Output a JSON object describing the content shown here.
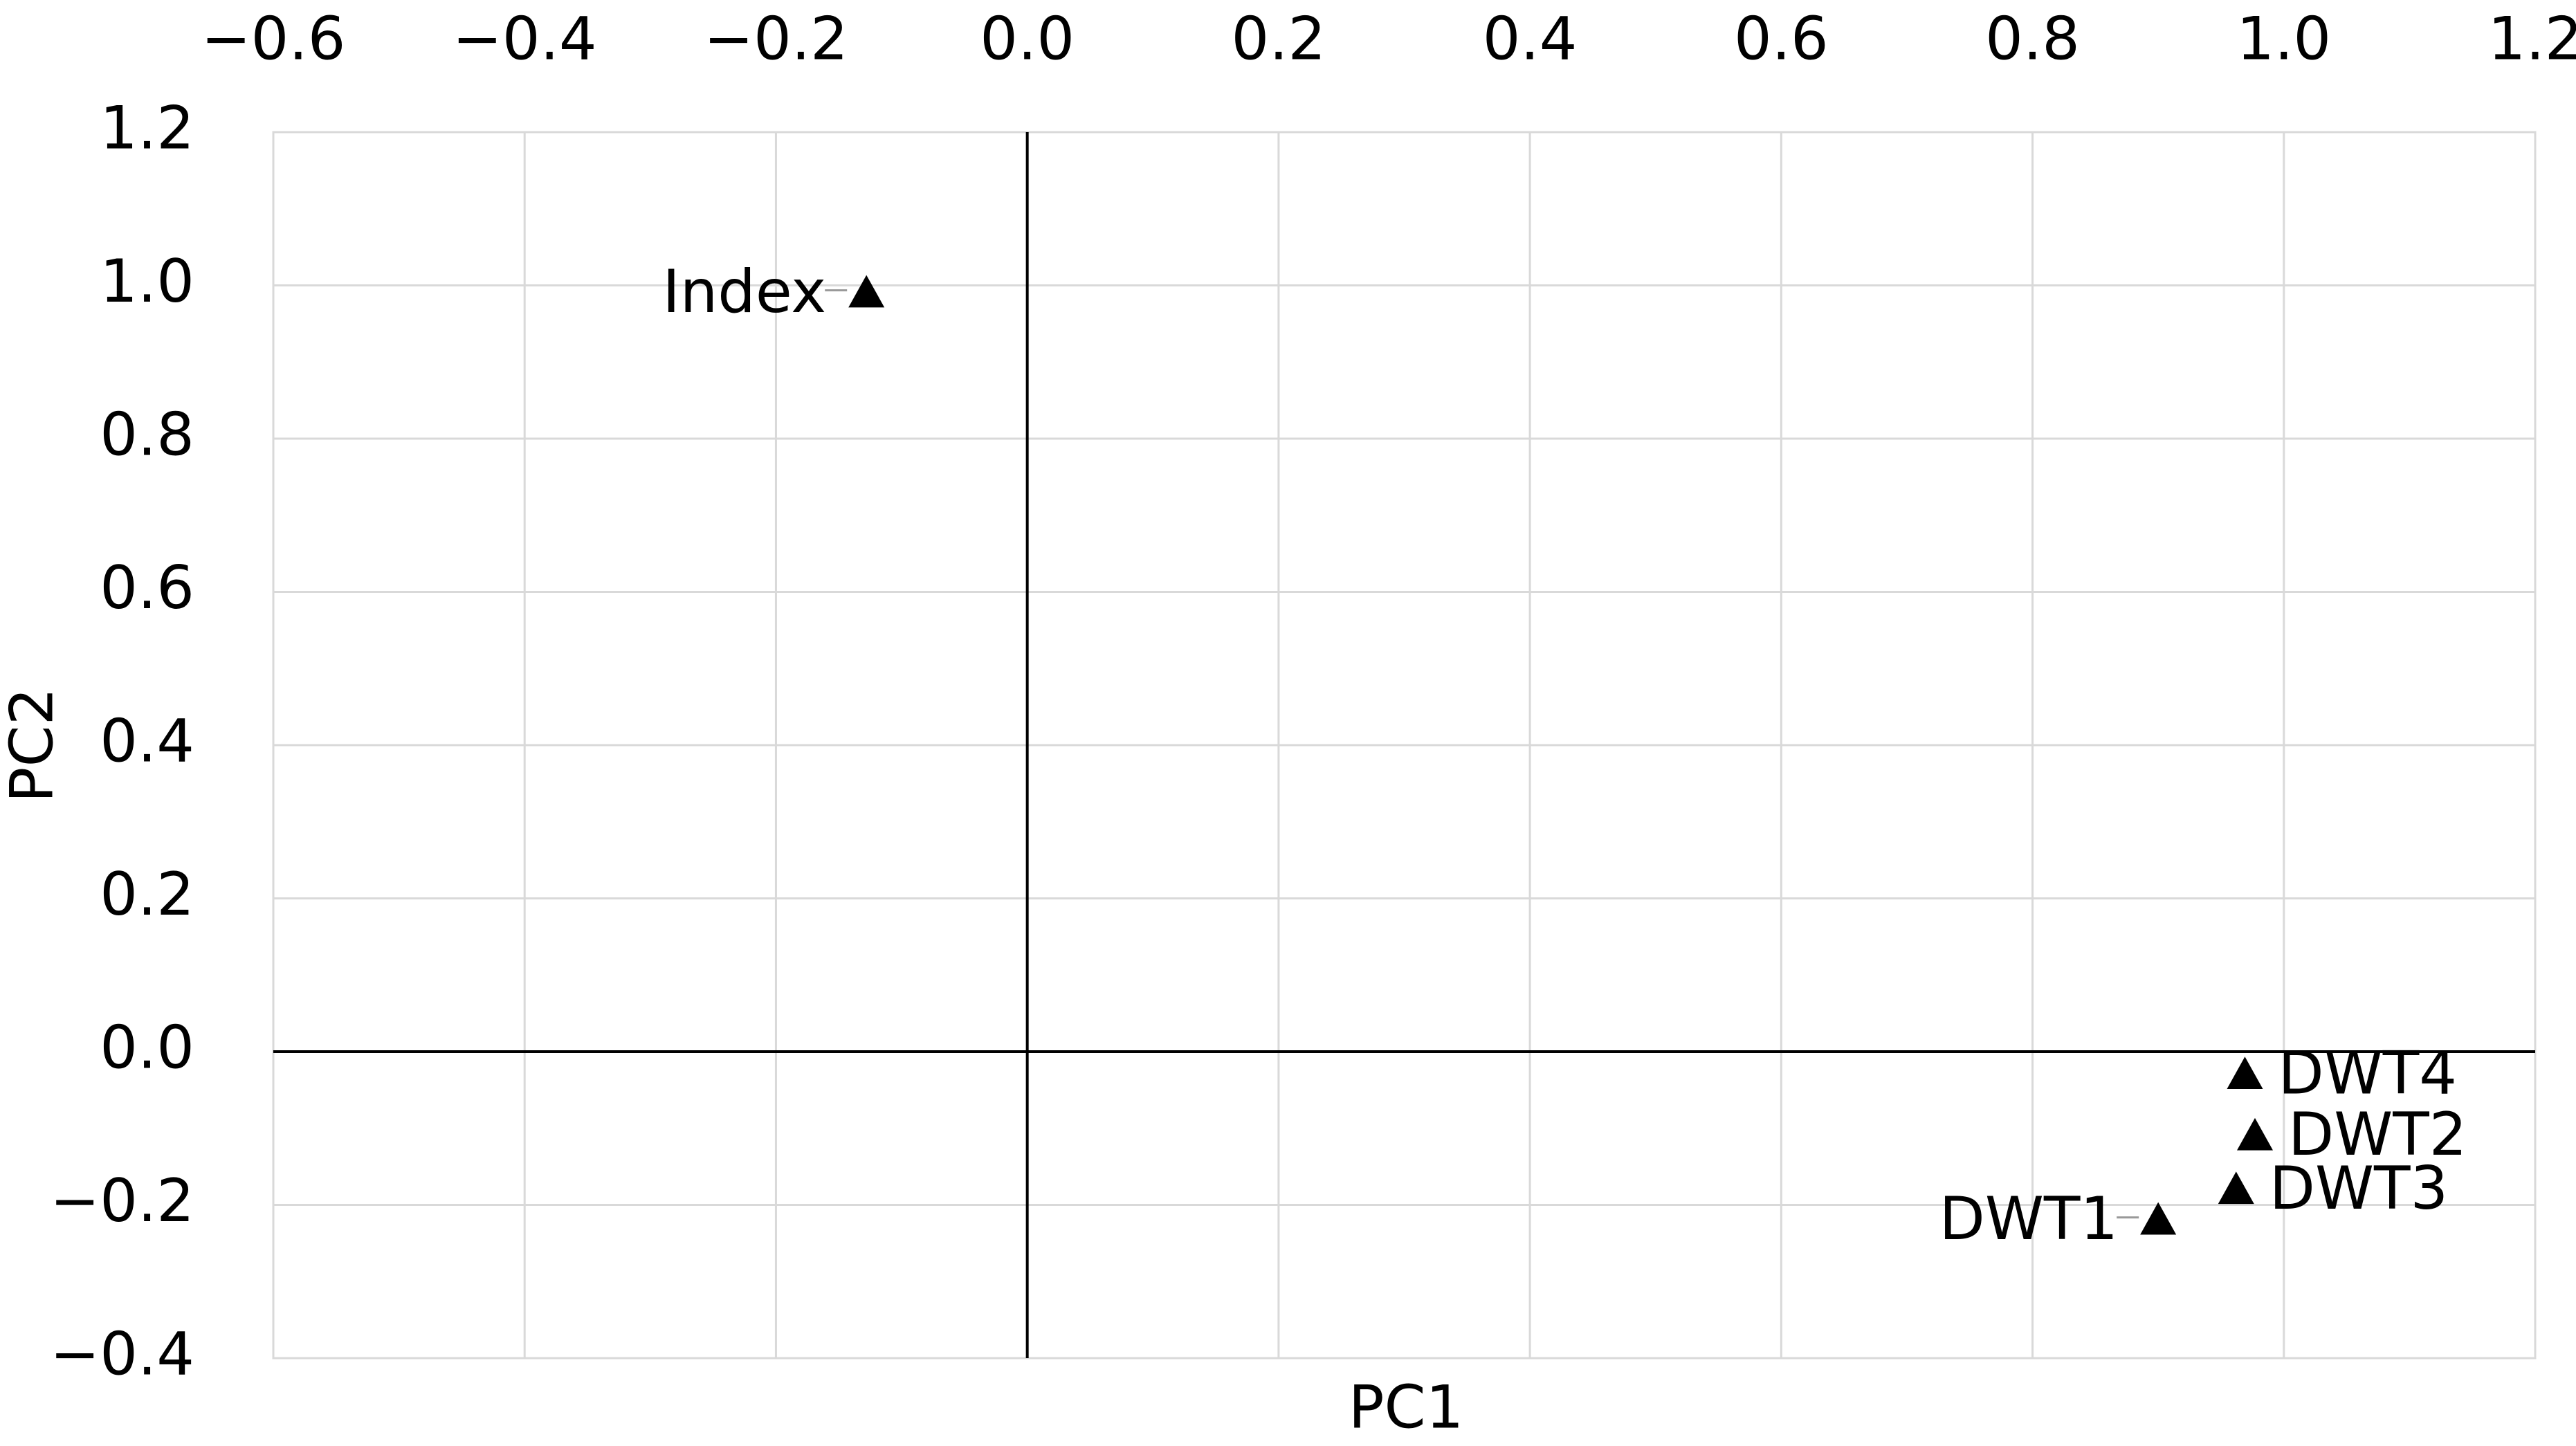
{
  "chart_data": {
    "type": "scatter",
    "xlabel": "PC1",
    "ylabel": "PC2",
    "labels": [
      "Index",
      "DWT4",
      "DWT2",
      "DWT3",
      "DWT1"
    ],
    "x": [
      -0.128,
      0.969,
      0.977,
      0.962,
      0.9
    ],
    "values": [
      0.99,
      -0.03,
      -0.11,
      -0.18,
      -0.22
    ],
    "color": "#000000",
    "xlim": [
      -0.6,
      1.2
    ],
    "xticks": [
      {
        "value": -0.6,
        "label": "−0.6"
      },
      {
        "value": -0.4,
        "label": "−0.4"
      },
      {
        "value": -0.2,
        "label": "−0.2"
      },
      {
        "value": 0,
        "label": "0.0"
      },
      0.2,
      0.4,
      0.6,
      0.8,
      {
        "value": 1,
        "label": "1.0"
      },
      1.2
    ],
    "ylim": [
      -0.4,
      1.2
    ],
    "yticks": [
      {
        "value": -0.4,
        "label": "−0.4"
      },
      {
        "value": -0.2,
        "label": "−0.2"
      },
      {
        "value": 0,
        "label": "0.0"
      },
      0.2,
      0.4,
      0.6,
      0.8,
      {
        "value": 1,
        "label": "1.0"
      },
      1.2
    ],
    "grid": true
  }
}
